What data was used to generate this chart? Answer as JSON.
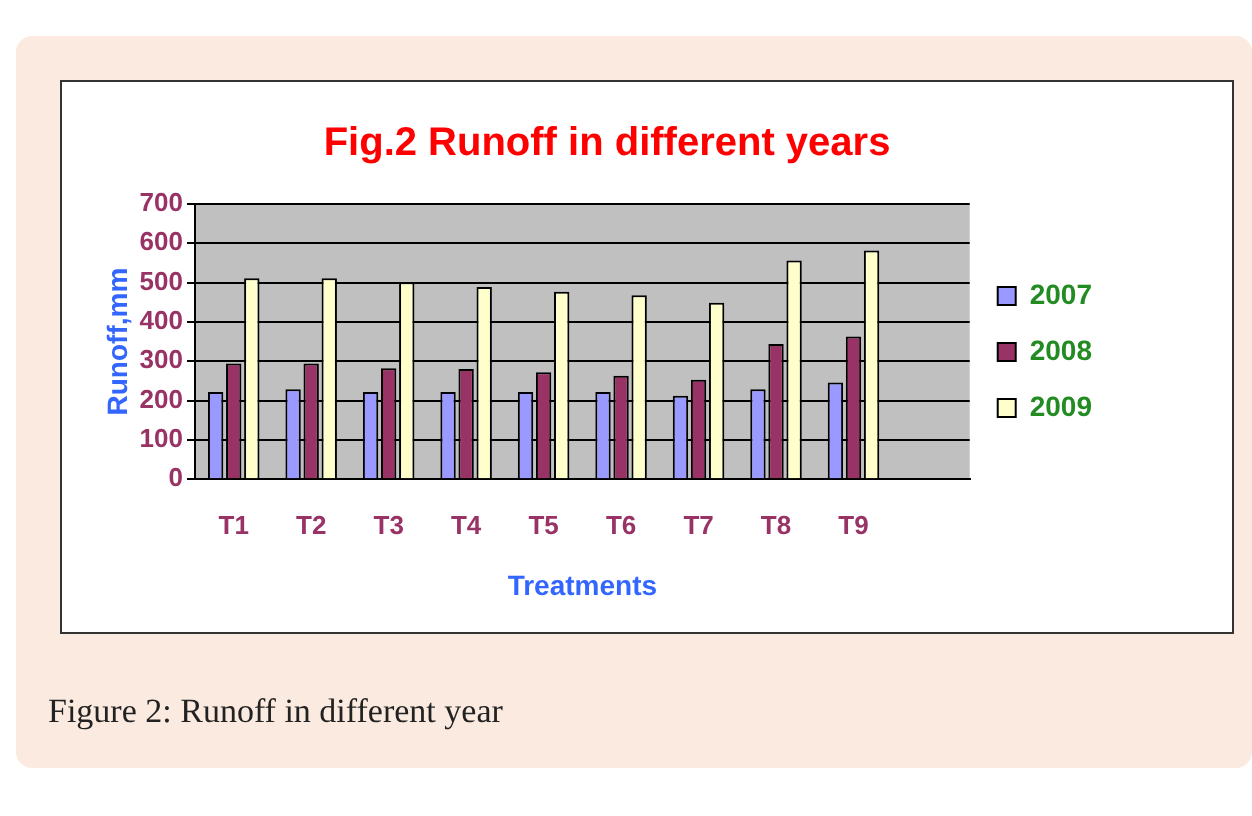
{
  "chart_data": {
    "type": "bar",
    "title": "Fig.2 Runoff in different years",
    "xlabel": "Treatments",
    "ylabel": "Runoff,mm",
    "categories": [
      "T1",
      "T2",
      "T3",
      "T4",
      "T5",
      "T6",
      "T7",
      "T8",
      "T9",
      null
    ],
    "series": [
      {
        "name": "2007",
        "color": "#9999ff",
        "values": [
          222,
          229,
          222,
          222,
          222,
          222,
          212,
          229,
          246,
          null
        ]
      },
      {
        "name": "2008",
        "color": "#993366",
        "values": [
          294,
          294,
          282,
          280,
          272,
          263,
          253,
          344,
          363,
          null
        ]
      },
      {
        "name": "2009",
        "color": "#ffffcc",
        "values": [
          511,
          511,
          501,
          489,
          477,
          468,
          449,
          556,
          582,
          null
        ]
      }
    ],
    "ylim": [
      0,
      700
    ],
    "yticks": [
      0,
      100,
      200,
      300,
      400,
      500,
      600,
      700
    ],
    "grid": "y",
    "legend": "right",
    "annotations": [
      "Figure 2: Runoff in different year"
    ]
  }
}
